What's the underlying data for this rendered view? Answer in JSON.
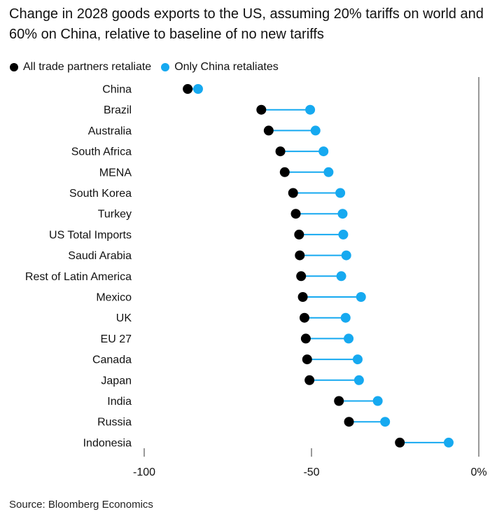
{
  "title": "Change in 2028 goods exports to the US, assuming 20% tariffs on world and 60% on China, relative to baseline of no new tariffs",
  "source": "Source: Bloomberg Economics",
  "legend": [
    {
      "label": "All trade partners retaliate",
      "color": "#000000"
    },
    {
      "label": "Only China retaliates",
      "color": "#16a9f0"
    }
  ],
  "chart_data": {
    "type": "dumbbell",
    "title": "Change in 2028 goods exports to the US, assuming 20% tariffs on world and 60% on China, relative to baseline of no new tariffs",
    "xlim": [
      -100,
      0
    ],
    "x_ticks": [
      -100,
      -50,
      0
    ],
    "x_tick_labels": [
      "-100",
      "-50",
      "0%"
    ],
    "grid": false,
    "legend_position": "top-left",
    "categories": [
      "China",
      "Brazil",
      "Australia",
      "South Africa",
      "MENA",
      "South Korea",
      "Turkey",
      "US Total Imports",
      "Saudi Arabia",
      "Rest of Latin America",
      "Mexico",
      "UK",
      "EU 27",
      "Canada",
      "Japan",
      "India",
      "Russia",
      "Indonesia"
    ],
    "series": [
      {
        "name": "All trade partners retaliate",
        "color": "#000000",
        "values": [
          -87,
          -65,
          -62.8,
          -59.3,
          -58,
          -55.5,
          -54.7,
          -53.7,
          -53.5,
          -53.1,
          -52.6,
          -52.1,
          -51.7,
          -51.3,
          -50.6,
          -41.8,
          -38.8,
          -23.6
        ]
      },
      {
        "name": "Only China retaliates",
        "color": "#16a9f0",
        "values": [
          -83.9,
          -50.4,
          -48.8,
          -46.4,
          -44.9,
          -41.4,
          -40.7,
          -40.5,
          -39.6,
          -41.1,
          -35.2,
          -39.8,
          -38.9,
          -36.2,
          -35.8,
          -30.2,
          -28,
          -9
        ]
      }
    ]
  }
}
